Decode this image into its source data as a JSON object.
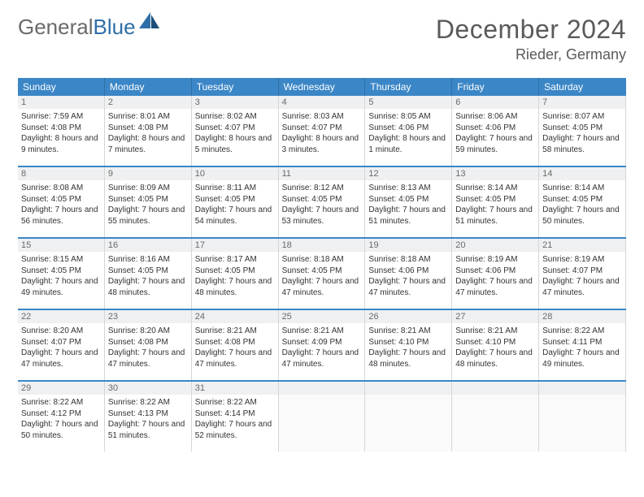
{
  "logo": {
    "general": "General",
    "blue": "Blue"
  },
  "title": "December 2024",
  "location": "Rieder, Germany",
  "colors": {
    "header_bg": "#3b86c6",
    "header_text": "#ffffff",
    "row_divider": "#3b86c6",
    "daynum_bg": "#eef0f2",
    "text": "#333333",
    "muted": "#6a6a6a"
  },
  "weekdays": [
    "Sunday",
    "Monday",
    "Tuesday",
    "Wednesday",
    "Thursday",
    "Friday",
    "Saturday"
  ],
  "days": [
    {
      "n": "1",
      "sr": "7:59 AM",
      "ss": "4:08 PM",
      "dl": "8 hours and 9 minutes."
    },
    {
      "n": "2",
      "sr": "8:01 AM",
      "ss": "4:08 PM",
      "dl": "8 hours and 7 minutes."
    },
    {
      "n": "3",
      "sr": "8:02 AM",
      "ss": "4:07 PM",
      "dl": "8 hours and 5 minutes."
    },
    {
      "n": "4",
      "sr": "8:03 AM",
      "ss": "4:07 PM",
      "dl": "8 hours and 3 minutes."
    },
    {
      "n": "5",
      "sr": "8:05 AM",
      "ss": "4:06 PM",
      "dl": "8 hours and 1 minute."
    },
    {
      "n": "6",
      "sr": "8:06 AM",
      "ss": "4:06 PM",
      "dl": "7 hours and 59 minutes."
    },
    {
      "n": "7",
      "sr": "8:07 AM",
      "ss": "4:05 PM",
      "dl": "7 hours and 58 minutes."
    },
    {
      "n": "8",
      "sr": "8:08 AM",
      "ss": "4:05 PM",
      "dl": "7 hours and 56 minutes."
    },
    {
      "n": "9",
      "sr": "8:09 AM",
      "ss": "4:05 PM",
      "dl": "7 hours and 55 minutes."
    },
    {
      "n": "10",
      "sr": "8:11 AM",
      "ss": "4:05 PM",
      "dl": "7 hours and 54 minutes."
    },
    {
      "n": "11",
      "sr": "8:12 AM",
      "ss": "4:05 PM",
      "dl": "7 hours and 53 minutes."
    },
    {
      "n": "12",
      "sr": "8:13 AM",
      "ss": "4:05 PM",
      "dl": "7 hours and 51 minutes."
    },
    {
      "n": "13",
      "sr": "8:14 AM",
      "ss": "4:05 PM",
      "dl": "7 hours and 51 minutes."
    },
    {
      "n": "14",
      "sr": "8:14 AM",
      "ss": "4:05 PM",
      "dl": "7 hours and 50 minutes."
    },
    {
      "n": "15",
      "sr": "8:15 AM",
      "ss": "4:05 PM",
      "dl": "7 hours and 49 minutes."
    },
    {
      "n": "16",
      "sr": "8:16 AM",
      "ss": "4:05 PM",
      "dl": "7 hours and 48 minutes."
    },
    {
      "n": "17",
      "sr": "8:17 AM",
      "ss": "4:05 PM",
      "dl": "7 hours and 48 minutes."
    },
    {
      "n": "18",
      "sr": "8:18 AM",
      "ss": "4:05 PM",
      "dl": "7 hours and 47 minutes."
    },
    {
      "n": "19",
      "sr": "8:18 AM",
      "ss": "4:06 PM",
      "dl": "7 hours and 47 minutes."
    },
    {
      "n": "20",
      "sr": "8:19 AM",
      "ss": "4:06 PM",
      "dl": "7 hours and 47 minutes."
    },
    {
      "n": "21",
      "sr": "8:19 AM",
      "ss": "4:07 PM",
      "dl": "7 hours and 47 minutes."
    },
    {
      "n": "22",
      "sr": "8:20 AM",
      "ss": "4:07 PM",
      "dl": "7 hours and 47 minutes."
    },
    {
      "n": "23",
      "sr": "8:20 AM",
      "ss": "4:08 PM",
      "dl": "7 hours and 47 minutes."
    },
    {
      "n": "24",
      "sr": "8:21 AM",
      "ss": "4:08 PM",
      "dl": "7 hours and 47 minutes."
    },
    {
      "n": "25",
      "sr": "8:21 AM",
      "ss": "4:09 PM",
      "dl": "7 hours and 47 minutes."
    },
    {
      "n": "26",
      "sr": "8:21 AM",
      "ss": "4:10 PM",
      "dl": "7 hours and 48 minutes."
    },
    {
      "n": "27",
      "sr": "8:21 AM",
      "ss": "4:10 PM",
      "dl": "7 hours and 48 minutes."
    },
    {
      "n": "28",
      "sr": "8:22 AM",
      "ss": "4:11 PM",
      "dl": "7 hours and 49 minutes."
    },
    {
      "n": "29",
      "sr": "8:22 AM",
      "ss": "4:12 PM",
      "dl": "7 hours and 50 minutes."
    },
    {
      "n": "30",
      "sr": "8:22 AM",
      "ss": "4:13 PM",
      "dl": "7 hours and 51 minutes."
    },
    {
      "n": "31",
      "sr": "8:22 AM",
      "ss": "4:14 PM",
      "dl": "7 hours and 52 minutes."
    }
  ],
  "labels": {
    "sunrise": "Sunrise:",
    "sunset": "Sunset:",
    "daylight": "Daylight:"
  }
}
